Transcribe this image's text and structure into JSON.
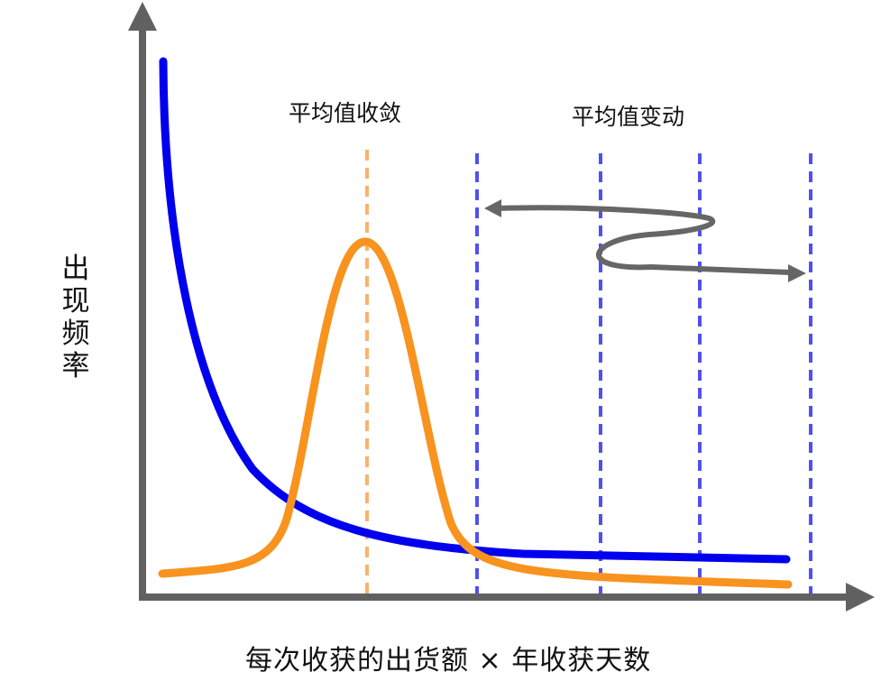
{
  "labels": {
    "x_axis": "每次收获的出货额 × 年收获天数",
    "y_axis": "出现频率",
    "converge": "平均值收敛",
    "vary": "平均值变动"
  },
  "colors": {
    "axis": "#616161",
    "long_tail_curve": "#0000ee",
    "peak_curve": "#f7931e",
    "peak_mean_line": "#f9b46a",
    "variable_mean_lines": "#5050f0",
    "arrow": "#666666",
    "background": "#ffffff"
  }
}
